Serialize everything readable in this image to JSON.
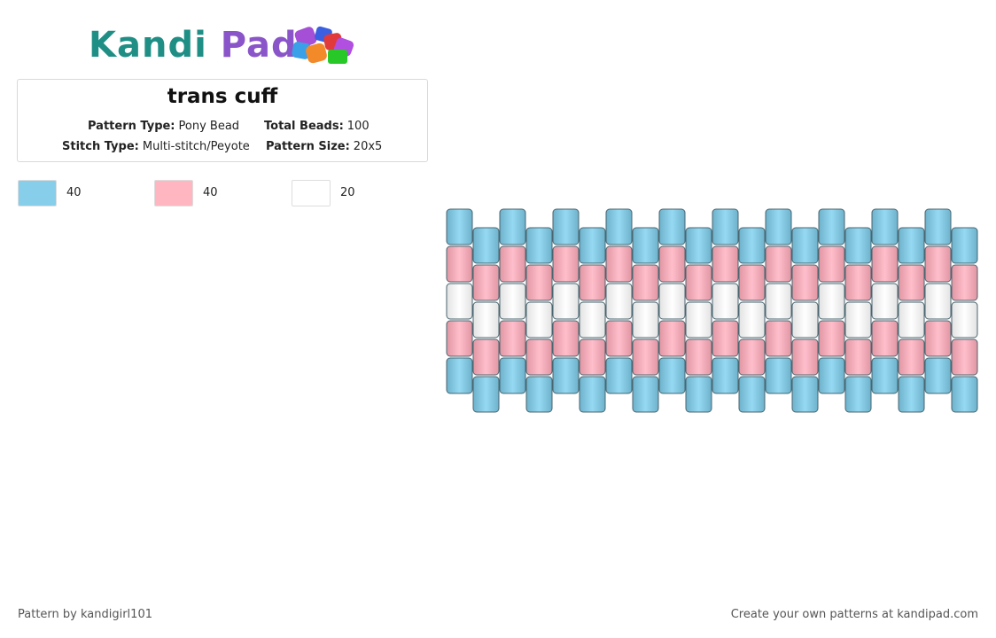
{
  "logo": {
    "text_part1": "Kandi",
    "text_part2": "Pad",
    "icon": "bead-pile-icon"
  },
  "pattern": {
    "title": "trans cuff",
    "type_label": "Pattern Type:",
    "type_value": "Pony Bead",
    "beads_label": "Total Beads:",
    "beads_value": "100",
    "stitch_label": "Stitch Type:",
    "stitch_value": "Multi-stitch/Peyote",
    "size_label": "Pattern Size:",
    "size_value": "20x5"
  },
  "legend": [
    {
      "color": "#87ceeb",
      "count": "40"
    },
    {
      "color": "#ffb6c1",
      "count": "40"
    },
    {
      "color": "#ffffff",
      "count": "20"
    }
  ],
  "grid": {
    "columns": 20,
    "rows_per_column": 5,
    "row_colors": [
      "#7fc3dd",
      "#f3a8b5",
      "#f4f4f4",
      "#f3a8b5",
      "#7fc3dd"
    ]
  },
  "footer": {
    "credit": "Pattern by kandigirl101",
    "promo": "Create your own patterns at kandipad.com"
  }
}
